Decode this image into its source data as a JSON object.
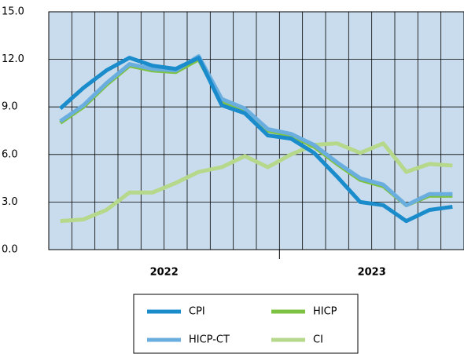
{
  "chart_data": {
    "type": "line",
    "categories": [
      null,
      null,
      null,
      null,
      null,
      null,
      null,
      null,
      null,
      null,
      null,
      null,
      null,
      null,
      null,
      null,
      null,
      null
    ],
    "x_group_labels": [
      "2022",
      "2023"
    ],
    "series": [
      {
        "name": "CI",
        "color": "#b5d88a",
        "values": [
          1.8,
          1.9,
          2.5,
          3.6,
          3.6,
          4.2,
          4.9,
          5.2,
          5.9,
          5.2,
          6.0,
          6.6,
          6.7,
          6.1,
          6.7,
          4.9,
          5.4,
          5.3
        ]
      },
      {
        "name": "HICP",
        "color": "#7dc242",
        "values": [
          8.0,
          9.0,
          10.4,
          11.6,
          11.3,
          11.2,
          12.0,
          9.3,
          8.7,
          7.5,
          7.2,
          6.5,
          5.4,
          4.4,
          4.0,
          2.8,
          3.4,
          3.4
        ]
      },
      {
        "name": "HICP-CT",
        "color": "#6aaee0",
        "values": [
          8.1,
          9.1,
          10.5,
          11.7,
          11.4,
          11.3,
          12.2,
          9.5,
          8.9,
          7.6,
          7.3,
          6.6,
          5.5,
          4.5,
          4.1,
          2.8,
          3.5,
          3.5
        ]
      },
      {
        "name": "CPI",
        "color": "#1a8ccc",
        "values": [
          8.9,
          10.2,
          11.3,
          12.1,
          11.6,
          11.4,
          12.1,
          9.1,
          8.6,
          7.2,
          7.0,
          6.1,
          4.6,
          3.0,
          2.8,
          1.8,
          2.5,
          2.7
        ]
      }
    ],
    "ylim": [
      0,
      15
    ],
    "yticks": [
      {
        "value": 0,
        "label": "0.0"
      },
      {
        "value": 3,
        "label": "3.0"
      },
      {
        "value": 6,
        "label": "6.0"
      },
      {
        "value": 9,
        "label": "9.0"
      },
      {
        "value": 12,
        "label": "12.0"
      },
      {
        "value": 15,
        "label": "15.0"
      }
    ],
    "grid": true,
    "plot_background": "#c8dced"
  }
}
